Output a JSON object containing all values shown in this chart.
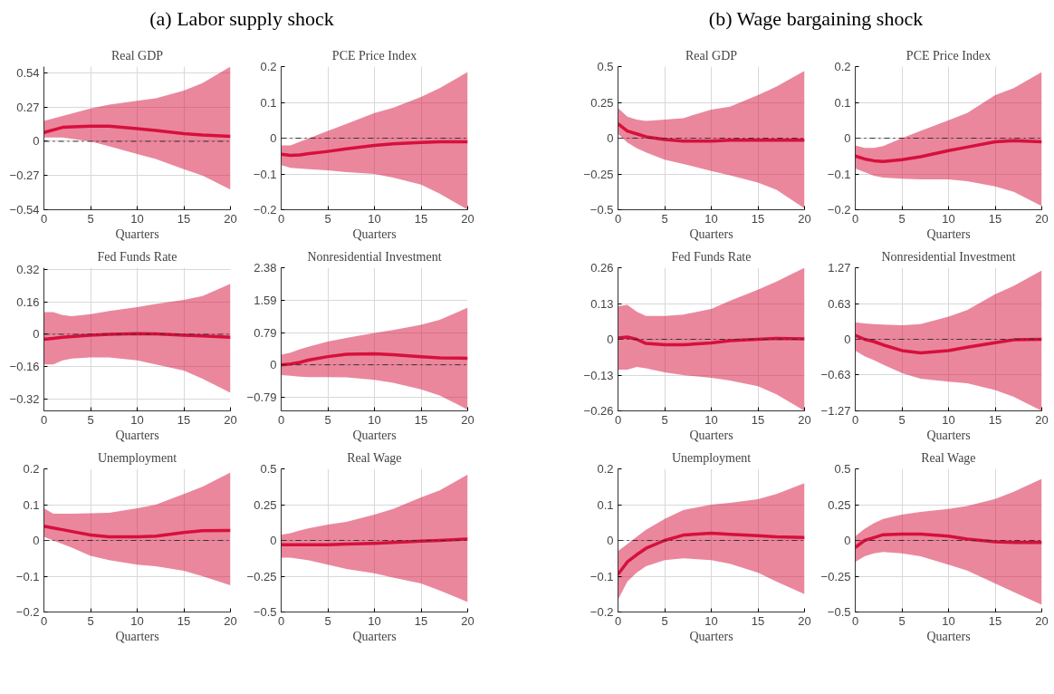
{
  "chart_data": [
    {
      "type": "line",
      "subtitle": "(a) Labor supply shock",
      "title": "Real GDP",
      "xlabel": "Quarters",
      "x": [
        0,
        1,
        2,
        3,
        5,
        7,
        10,
        12,
        15,
        17,
        20
      ],
      "xlim": [
        0,
        20
      ],
      "xticks": [
        0,
        5,
        10,
        15,
        20
      ],
      "ylim": [
        -0.54,
        0.59
      ],
      "yticks": [
        -0.54,
        -0.27,
        0,
        0.27,
        0.54
      ],
      "grid": true,
      "ref_lines": [
        {
          "axis": "y",
          "value": 0,
          "color": "#333333",
          "line_style": "dashdot"
        }
      ],
      "series": [
        {
          "color": "#d6103c",
          "values": [
            0.07,
            0.09,
            0.11,
            0.115,
            0.12,
            0.12,
            0.1,
            0.085,
            0.06,
            0.05,
            0.04
          ],
          "upper": [
            0.16,
            0.18,
            0.2,
            0.22,
            0.26,
            0.29,
            0.32,
            0.34,
            0.4,
            0.46,
            0.59
          ],
          "lower": [
            0.03,
            0.03,
            0.03,
            0.02,
            0,
            -0.04,
            -0.1,
            -0.14,
            -0.22,
            -0.27,
            -0.38
          ]
        }
      ]
    },
    {
      "type": "line",
      "title": "PCE Price Index",
      "xlabel": "Quarters",
      "x": [
        0,
        1,
        2,
        3,
        5,
        7,
        10,
        12,
        15,
        17,
        20
      ],
      "xlim": [
        0,
        20
      ],
      "xticks": [
        0,
        5,
        10,
        15,
        20
      ],
      "ylim": [
        -0.2,
        0.2
      ],
      "yticks": [
        -0.2,
        -0.1,
        0,
        0.1,
        0.2
      ],
      "grid": true,
      "ref_lines": [
        {
          "axis": "y",
          "value": 0,
          "color": "#333333",
          "line_style": "dashdot"
        }
      ],
      "series": [
        {
          "color": "#d6103c",
          "values": [
            -0.045,
            -0.048,
            -0.047,
            -0.043,
            -0.037,
            -0.03,
            -0.02,
            -0.016,
            -0.012,
            -0.01,
            -0.01
          ],
          "upper": [
            -0.02,
            -0.02,
            -0.01,
            0,
            0.02,
            0.04,
            0.07,
            0.085,
            0.115,
            0.14,
            0.185
          ],
          "lower": [
            -0.075,
            -0.083,
            -0.085,
            -0.087,
            -0.09,
            -0.095,
            -0.1,
            -0.11,
            -0.13,
            -0.155,
            -0.2
          ]
        }
      ]
    },
    {
      "type": "line",
      "title": "Fed Funds Rate",
      "xlabel": "Quarters",
      "x": [
        0,
        1,
        2,
        3,
        5,
        7,
        10,
        12,
        15,
        17,
        20
      ],
      "xlim": [
        0,
        20
      ],
      "xticks": [
        0,
        5,
        10,
        15,
        20
      ],
      "ylim": [
        -0.38,
        0.33
      ],
      "yticks": [
        -0.32,
        -0.16,
        0,
        0.16,
        0.32
      ],
      "grid": true,
      "ref_lines": [
        {
          "axis": "y",
          "value": 0,
          "color": "#333333",
          "line_style": "dashdot"
        }
      ],
      "series": [
        {
          "color": "#d6103c",
          "values": [
            -0.025,
            -0.02,
            -0.015,
            -0.012,
            -0.005,
            0,
            0.003,
            0.002,
            -0.005,
            -0.008,
            -0.015
          ],
          "upper": [
            0.11,
            0.11,
            0.095,
            0.09,
            0.1,
            0.115,
            0.135,
            0.15,
            0.17,
            0.19,
            0.25
          ],
          "lower": [
            -0.15,
            -0.15,
            -0.13,
            -0.12,
            -0.115,
            -0.115,
            -0.13,
            -0.15,
            -0.18,
            -0.22,
            -0.29
          ]
        }
      ]
    },
    {
      "type": "line",
      "title": "Nonresidential Investment",
      "xlabel": "Quarters",
      "x": [
        0,
        1,
        2,
        3,
        5,
        7,
        10,
        12,
        15,
        17,
        20
      ],
      "xlim": [
        0,
        20
      ],
      "xticks": [
        0,
        5,
        10,
        15,
        20
      ],
      "ylim": [
        -1.13,
        2.38
      ],
      "yticks": [
        -0.79,
        0,
        0.79,
        1.59,
        2.38
      ],
      "grid": true,
      "ref_lines": [
        {
          "axis": "y",
          "value": 0,
          "color": "#333333",
          "line_style": "dashdot"
        }
      ],
      "series": [
        {
          "color": "#d6103c",
          "values": [
            0,
            0.02,
            0.06,
            0.12,
            0.2,
            0.26,
            0.27,
            0.25,
            0.2,
            0.17,
            0.16
          ],
          "upper": [
            0.25,
            0.3,
            0.38,
            0.45,
            0.57,
            0.66,
            0.78,
            0.85,
            0.98,
            1.1,
            1.4
          ],
          "lower": [
            -0.25,
            -0.27,
            -0.29,
            -0.3,
            -0.3,
            -0.31,
            -0.37,
            -0.44,
            -0.6,
            -0.75,
            -1.1
          ]
        }
      ]
    },
    {
      "type": "line",
      "title": "Unemployment",
      "xlabel": "Quarters",
      "x": [
        0,
        1,
        2,
        3,
        5,
        7,
        10,
        12,
        15,
        17,
        20
      ],
      "xlim": [
        0,
        20
      ],
      "xticks": [
        0,
        5,
        10,
        15,
        20
      ],
      "ylim": [
        -0.2,
        0.2
      ],
      "yticks": [
        -0.2,
        -0.1,
        0,
        0.1,
        0.2
      ],
      "grid": true,
      "ref_lines": [
        {
          "axis": "y",
          "value": 0,
          "color": "#333333",
          "line_style": "dashdot"
        }
      ],
      "series": [
        {
          "color": "#d6103c",
          "values": [
            0.04,
            0.035,
            0.03,
            0.025,
            0.015,
            0.01,
            0.01,
            0.012,
            0.022,
            0.027,
            0.028
          ],
          "upper": [
            0.09,
            0.075,
            0.075,
            0.075,
            0.076,
            0.077,
            0.09,
            0.1,
            0.13,
            0.15,
            0.19
          ],
          "lower": [
            0.01,
            0,
            -0.01,
            -0.02,
            -0.043,
            -0.055,
            -0.068,
            -0.072,
            -0.085,
            -0.1,
            -0.125
          ]
        }
      ]
    },
    {
      "type": "line",
      "title": "Real Wage",
      "xlabel": "Quarters",
      "x": [
        0,
        1,
        2,
        3,
        5,
        7,
        10,
        12,
        15,
        17,
        20
      ],
      "xlim": [
        0,
        20
      ],
      "xticks": [
        0,
        5,
        10,
        15,
        20
      ],
      "ylim": [
        -0.5,
        0.5
      ],
      "yticks": [
        -0.5,
        -0.25,
        0,
        0.25,
        0.5
      ],
      "grid": true,
      "ref_lines": [
        {
          "axis": "y",
          "value": 0,
          "color": "#333333",
          "line_style": "dashdot"
        }
      ],
      "series": [
        {
          "color": "#d6103c",
          "values": [
            -0.03,
            -0.03,
            -0.03,
            -0.03,
            -0.03,
            -0.025,
            -0.02,
            -0.015,
            -0.005,
            0,
            0.01
          ],
          "upper": [
            0.04,
            0.05,
            0.07,
            0.085,
            0.11,
            0.13,
            0.18,
            0.22,
            0.3,
            0.35,
            0.46
          ],
          "lower": [
            -0.12,
            -0.12,
            -0.13,
            -0.14,
            -0.17,
            -0.2,
            -0.23,
            -0.26,
            -0.3,
            -0.35,
            -0.43
          ]
        }
      ]
    },
    {
      "type": "line",
      "subtitle": "(b) Wage bargaining shock",
      "title": "Real GDP",
      "xlabel": "Quarters",
      "x": [
        0,
        1,
        2,
        3,
        5,
        7,
        10,
        12,
        15,
        17,
        20
      ],
      "xlim": [
        0,
        20
      ],
      "xticks": [
        0,
        5,
        10,
        15,
        20
      ],
      "ylim": [
        -0.5,
        0.5
      ],
      "yticks": [
        -0.5,
        -0.25,
        0,
        0.25,
        0.5
      ],
      "grid": true,
      "ref_lines": [
        {
          "axis": "y",
          "value": 0,
          "color": "#333333",
          "line_style": "dashdot"
        }
      ],
      "series": [
        {
          "color": "#d6103c",
          "values": [
            0.1,
            0.05,
            0.03,
            0.01,
            -0.01,
            -0.02,
            -0.02,
            -0.015,
            -0.015,
            -0.015,
            -0.015
          ],
          "upper": [
            0.21,
            0.15,
            0.13,
            0.12,
            0.13,
            0.14,
            0.2,
            0.22,
            0.3,
            0.36,
            0.47
          ],
          "lower": [
            0.03,
            -0.03,
            -0.07,
            -0.1,
            -0.15,
            -0.18,
            -0.23,
            -0.26,
            -0.31,
            -0.36,
            -0.49
          ]
        }
      ]
    },
    {
      "type": "line",
      "title": "PCE Price Index",
      "xlabel": "Quarters",
      "x": [
        0,
        1,
        2,
        3,
        5,
        7,
        10,
        12,
        15,
        17,
        20
      ],
      "xlim": [
        0,
        20
      ],
      "xticks": [
        0,
        5,
        10,
        15,
        20
      ],
      "ylim": [
        -0.2,
        0.2
      ],
      "yticks": [
        -0.2,
        -0.1,
        0,
        0.1,
        0.2
      ],
      "grid": true,
      "ref_lines": [
        {
          "axis": "y",
          "value": 0,
          "color": "#333333",
          "line_style": "dashdot"
        }
      ],
      "series": [
        {
          "color": "#d6103c",
          "values": [
            -0.05,
            -0.058,
            -0.063,
            -0.065,
            -0.06,
            -0.052,
            -0.035,
            -0.025,
            -0.01,
            -0.007,
            -0.01
          ],
          "upper": [
            -0.02,
            -0.027,
            -0.027,
            -0.022,
            0,
            0.02,
            0.05,
            0.07,
            0.12,
            0.14,
            0.185
          ],
          "lower": [
            -0.085,
            -0.095,
            -0.105,
            -0.11,
            -0.113,
            -0.115,
            -0.115,
            -0.12,
            -0.135,
            -0.15,
            -0.19
          ]
        }
      ]
    },
    {
      "type": "line",
      "title": "Fed Funds Rate",
      "xlabel": "Quarters",
      "x": [
        0,
        1,
        2,
        3,
        5,
        7,
        10,
        12,
        15,
        17,
        20
      ],
      "xlim": [
        0,
        20
      ],
      "xticks": [
        0,
        5,
        10,
        15,
        20
      ],
      "ylim": [
        -0.26,
        0.26
      ],
      "yticks": [
        -0.26,
        -0.13,
        0,
        0.13,
        0.26
      ],
      "grid": true,
      "ref_lines": [
        {
          "axis": "y",
          "value": 0,
          "color": "#333333",
          "line_style": "dashdot"
        }
      ],
      "series": [
        {
          "color": "#d6103c",
          "values": [
            0.005,
            0.008,
            0,
            -0.015,
            -0.02,
            -0.02,
            -0.013,
            -0.005,
            0,
            0.003,
            0.002
          ],
          "upper": [
            0.12,
            0.125,
            0.1,
            0.085,
            0.085,
            0.09,
            0.11,
            0.14,
            0.18,
            0.21,
            0.26
          ],
          "lower": [
            -0.11,
            -0.11,
            -0.1,
            -0.105,
            -0.12,
            -0.13,
            -0.14,
            -0.15,
            -0.17,
            -0.2,
            -0.26
          ]
        }
      ]
    },
    {
      "type": "line",
      "title": "Nonresidential Investment",
      "xlabel": "Quarters",
      "x": [
        0,
        1,
        2,
        3,
        5,
        7,
        10,
        12,
        15,
        17,
        20
      ],
      "xlim": [
        0,
        20
      ],
      "xticks": [
        0,
        5,
        10,
        15,
        20
      ],
      "ylim": [
        -1.27,
        1.27
      ],
      "yticks": [
        -1.27,
        -0.63,
        0,
        0.63,
        1.27
      ],
      "grid": true,
      "ref_lines": [
        {
          "axis": "y",
          "value": 0,
          "color": "#333333",
          "line_style": "dashdot"
        }
      ],
      "series": [
        {
          "color": "#d6103c",
          "values": [
            0.07,
            0,
            -0.04,
            -0.1,
            -0.2,
            -0.24,
            -0.2,
            -0.14,
            -0.06,
            -0.01,
            0
          ],
          "upper": [
            0.3,
            0.28,
            0.27,
            0.26,
            0.25,
            0.27,
            0.4,
            0.52,
            0.8,
            0.95,
            1.22
          ],
          "lower": [
            -0.2,
            -0.3,
            -0.37,
            -0.45,
            -0.6,
            -0.7,
            -0.75,
            -0.78,
            -0.9,
            -1.02,
            -1.27
          ]
        }
      ]
    },
    {
      "type": "line",
      "title": "Unemployment",
      "xlabel": "Quarters",
      "x": [
        0,
        1,
        2,
        3,
        5,
        7,
        10,
        12,
        15,
        17,
        20
      ],
      "xlim": [
        0,
        20
      ],
      "xticks": [
        0,
        5,
        10,
        15,
        20
      ],
      "ylim": [
        -0.2,
        0.2
      ],
      "yticks": [
        -0.2,
        -0.1,
        0,
        0.1,
        0.2
      ],
      "grid": true,
      "ref_lines": [
        {
          "axis": "y",
          "value": 0,
          "color": "#333333",
          "line_style": "dashdot"
        }
      ],
      "series": [
        {
          "color": "#d6103c",
          "values": [
            -0.095,
            -0.06,
            -0.04,
            -0.022,
            0,
            0.015,
            0.02,
            0.017,
            0.013,
            0.01,
            0.008
          ],
          "upper": [
            -0.03,
            -0.01,
            0.01,
            0.03,
            0.06,
            0.085,
            0.1,
            0.105,
            0.115,
            0.13,
            0.16
          ],
          "lower": [
            -0.165,
            -0.115,
            -0.09,
            -0.072,
            -0.055,
            -0.05,
            -0.055,
            -0.065,
            -0.09,
            -0.115,
            -0.15
          ]
        }
      ]
    },
    {
      "type": "line",
      "title": "Real Wage",
      "xlabel": "Quarters",
      "x": [
        0,
        1,
        2,
        3,
        5,
        7,
        10,
        12,
        15,
        17,
        20
      ],
      "xlim": [
        0,
        20
      ],
      "xticks": [
        0,
        5,
        10,
        15,
        20
      ],
      "ylim": [
        -0.5,
        0.5
      ],
      "yticks": [
        -0.5,
        -0.25,
        0,
        0.25,
        0.5
      ],
      "grid": true,
      "ref_lines": [
        {
          "axis": "y",
          "value": 0,
          "color": "#333333",
          "line_style": "dashdot"
        }
      ],
      "series": [
        {
          "color": "#d6103c",
          "values": [
            -0.05,
            0,
            0.02,
            0.04,
            0.045,
            0.045,
            0.03,
            0.01,
            -0.01,
            -0.015,
            -0.015
          ],
          "upper": [
            0.03,
            0.08,
            0.12,
            0.15,
            0.18,
            0.2,
            0.22,
            0.24,
            0.29,
            0.34,
            0.43
          ],
          "lower": [
            -0.15,
            -0.11,
            -0.09,
            -0.08,
            -0.09,
            -0.11,
            -0.17,
            -0.21,
            -0.3,
            -0.36,
            -0.45
          ]
        }
      ]
    }
  ]
}
